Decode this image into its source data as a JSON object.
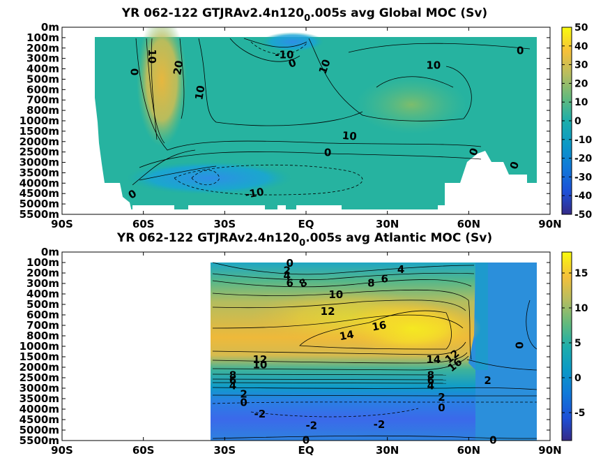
{
  "chart_data": [
    {
      "type": "heatmap",
      "title": "YR 062-122 GTJRAv2.4n120",
      "title_subscript": "0",
      "title_suffix": ".005s avg  Global MOC (Sv)",
      "x_ticks": [
        "90S",
        "60S",
        "30S",
        "EQ",
        "30N",
        "60N",
        "90N"
      ],
      "x_values": [
        -90,
        -60,
        -30,
        0,
        30,
        60,
        90
      ],
      "y_ticks": [
        "0m",
        "100m",
        "200m",
        "300m",
        "400m",
        "500m",
        "600m",
        "700m",
        "800m",
        "1000m",
        "1500m",
        "2000m",
        "2500m",
        "3000m",
        "3500m",
        "4000m",
        "4500m",
        "5000m",
        "5500m"
      ],
      "colorbar": {
        "min": -50,
        "max": 50,
        "ticks": [
          "50",
          "40",
          "30",
          "20",
          "10",
          "0",
          "-10",
          "-20",
          "-30",
          "-40",
          "-50"
        ]
      },
      "contour_labels": [
        {
          "text": "10",
          "lat": -57,
          "depth_idx": 2.8,
          "rot": 90
        },
        {
          "text": "0",
          "lat": -63,
          "depth_idx": 4.3,
          "rot": -90
        },
        {
          "text": "20",
          "lat": -47,
          "depth_idx": 3.9,
          "rot": -80
        },
        {
          "text": "10",
          "lat": -39,
          "depth_idx": 6.3,
          "rot": -80
        },
        {
          "text": "-10",
          "lat": -8,
          "depth_idx": 2.7,
          "rot": 0
        },
        {
          "text": "0",
          "lat": -5,
          "depth_idx": 3.5,
          "rot": -20
        },
        {
          "text": "10",
          "lat": 7,
          "depth_idx": 3.8,
          "rot": -70
        },
        {
          "text": "10",
          "lat": 47,
          "depth_idx": 3.7,
          "rot": 0
        },
        {
          "text": "0",
          "lat": 79,
          "depth_idx": 2.3,
          "rot": 0
        },
        {
          "text": "10",
          "lat": 16,
          "depth_idx": 10.5,
          "rot": 5
        },
        {
          "text": "0",
          "lat": 8,
          "depth_idx": 12.1,
          "rot": 0
        },
        {
          "text": "0",
          "lat": 62,
          "depth_idx": 12.0,
          "rot": -70
        },
        {
          "text": "0",
          "lat": 77,
          "depth_idx": 13.3,
          "rot": -70
        },
        {
          "text": "0",
          "lat": -64,
          "depth_idx": 16.1,
          "rot": -30
        },
        {
          "text": "-10",
          "lat": -19,
          "depth_idx": 16.0,
          "rot": -10
        }
      ]
    },
    {
      "type": "heatmap",
      "title": "YR 062-122 GTJRAv2.4n120",
      "title_subscript": "0",
      "title_suffix": ".005s avg  Atlantic MOC (Sv)",
      "x_ticks": [
        "90S",
        "60S",
        "30S",
        "EQ",
        "30N",
        "60N",
        "90N"
      ],
      "x_values": [
        -90,
        -60,
        -30,
        0,
        30,
        60,
        90
      ],
      "y_ticks": [
        "0m",
        "100m",
        "200m",
        "300m",
        "400m",
        "500m",
        "600m",
        "700m",
        "800m",
        "1000m",
        "1500m",
        "2000m",
        "2500m",
        "3000m",
        "3500m",
        "4000m",
        "4500m",
        "5000m",
        "5500m"
      ],
      "colorbar": {
        "min": -9,
        "max": 18,
        "ticks": [
          "15",
          "10",
          "5",
          "0",
          "-5"
        ]
      },
      "contour_labels": [
        {
          "text": "0",
          "lat": -6,
          "depth_idx": 1.1,
          "rot": 0
        },
        {
          "text": "2",
          "lat": -7,
          "depth_idx": 1.8,
          "rot": 0
        },
        {
          "text": "4",
          "lat": -7,
          "depth_idx": 2.3,
          "rot": 0
        },
        {
          "text": "6",
          "lat": -6,
          "depth_idx": 3.0,
          "rot": 0
        },
        {
          "text": "8",
          "lat": -1,
          "depth_idx": 3.0,
          "rot": -30
        },
        {
          "text": "8",
          "lat": 24,
          "depth_idx": 3.0,
          "rot": 0
        },
        {
          "text": "6",
          "lat": 29,
          "depth_idx": 2.6,
          "rot": 0
        },
        {
          "text": "4",
          "lat": 35,
          "depth_idx": 1.7,
          "rot": 0
        },
        {
          "text": "10",
          "lat": 11,
          "depth_idx": 4.1,
          "rot": 0
        },
        {
          "text": "12",
          "lat": 8,
          "depth_idx": 5.7,
          "rot": 0
        },
        {
          "text": "14",
          "lat": 15,
          "depth_idx": 8.0,
          "rot": -10
        },
        {
          "text": "16",
          "lat": 27,
          "depth_idx": 7.1,
          "rot": -10
        },
        {
          "text": "0",
          "lat": 79,
          "depth_idx": 8.9,
          "rot": -90
        },
        {
          "text": "12",
          "lat": -17,
          "depth_idx": 10.3,
          "rot": 0
        },
        {
          "text": "10",
          "lat": -17,
          "depth_idx": 10.8,
          "rot": 0
        },
        {
          "text": "14",
          "lat": 47,
          "depth_idx": 10.3,
          "rot": 0
        },
        {
          "text": "12",
          "lat": 54,
          "depth_idx": 10.0,
          "rot": -40
        },
        {
          "text": "16",
          "lat": 55,
          "depth_idx": 10.8,
          "rot": -40
        },
        {
          "text": "8",
          "lat": -27,
          "depth_idx": 11.8,
          "rot": 0
        },
        {
          "text": "6",
          "lat": -27,
          "depth_idx": 12.3,
          "rot": 0
        },
        {
          "text": "4",
          "lat": -27,
          "depth_idx": 12.8,
          "rot": 0
        },
        {
          "text": "8",
          "lat": 46,
          "depth_idx": 11.8,
          "rot": 0
        },
        {
          "text": "6",
          "lat": 46,
          "depth_idx": 12.3,
          "rot": 0
        },
        {
          "text": "4",
          "lat": 46,
          "depth_idx": 12.8,
          "rot": 0
        },
        {
          "text": "2",
          "lat": 67,
          "depth_idx": 12.3,
          "rot": 0
        },
        {
          "text": "2",
          "lat": -23,
          "depth_idx": 13.6,
          "rot": 0
        },
        {
          "text": "0",
          "lat": -23,
          "depth_idx": 14.4,
          "rot": 0
        },
        {
          "text": "2",
          "lat": 50,
          "depth_idx": 13.9,
          "rot": 0
        },
        {
          "text": "0",
          "lat": 50,
          "depth_idx": 14.9,
          "rot": 0
        },
        {
          "text": "-2",
          "lat": -17,
          "depth_idx": 15.5,
          "rot": 0
        },
        {
          "text": "-2",
          "lat": 2,
          "depth_idx": 16.6,
          "rot": 0
        },
        {
          "text": "-2",
          "lat": 27,
          "depth_idx": 16.5,
          "rot": 0
        },
        {
          "text": "0",
          "lat": 0,
          "depth_idx": 18.0,
          "rot": 0
        },
        {
          "text": "0",
          "lat": 69,
          "depth_idx": 18.0,
          "rot": 0
        }
      ]
    }
  ]
}
